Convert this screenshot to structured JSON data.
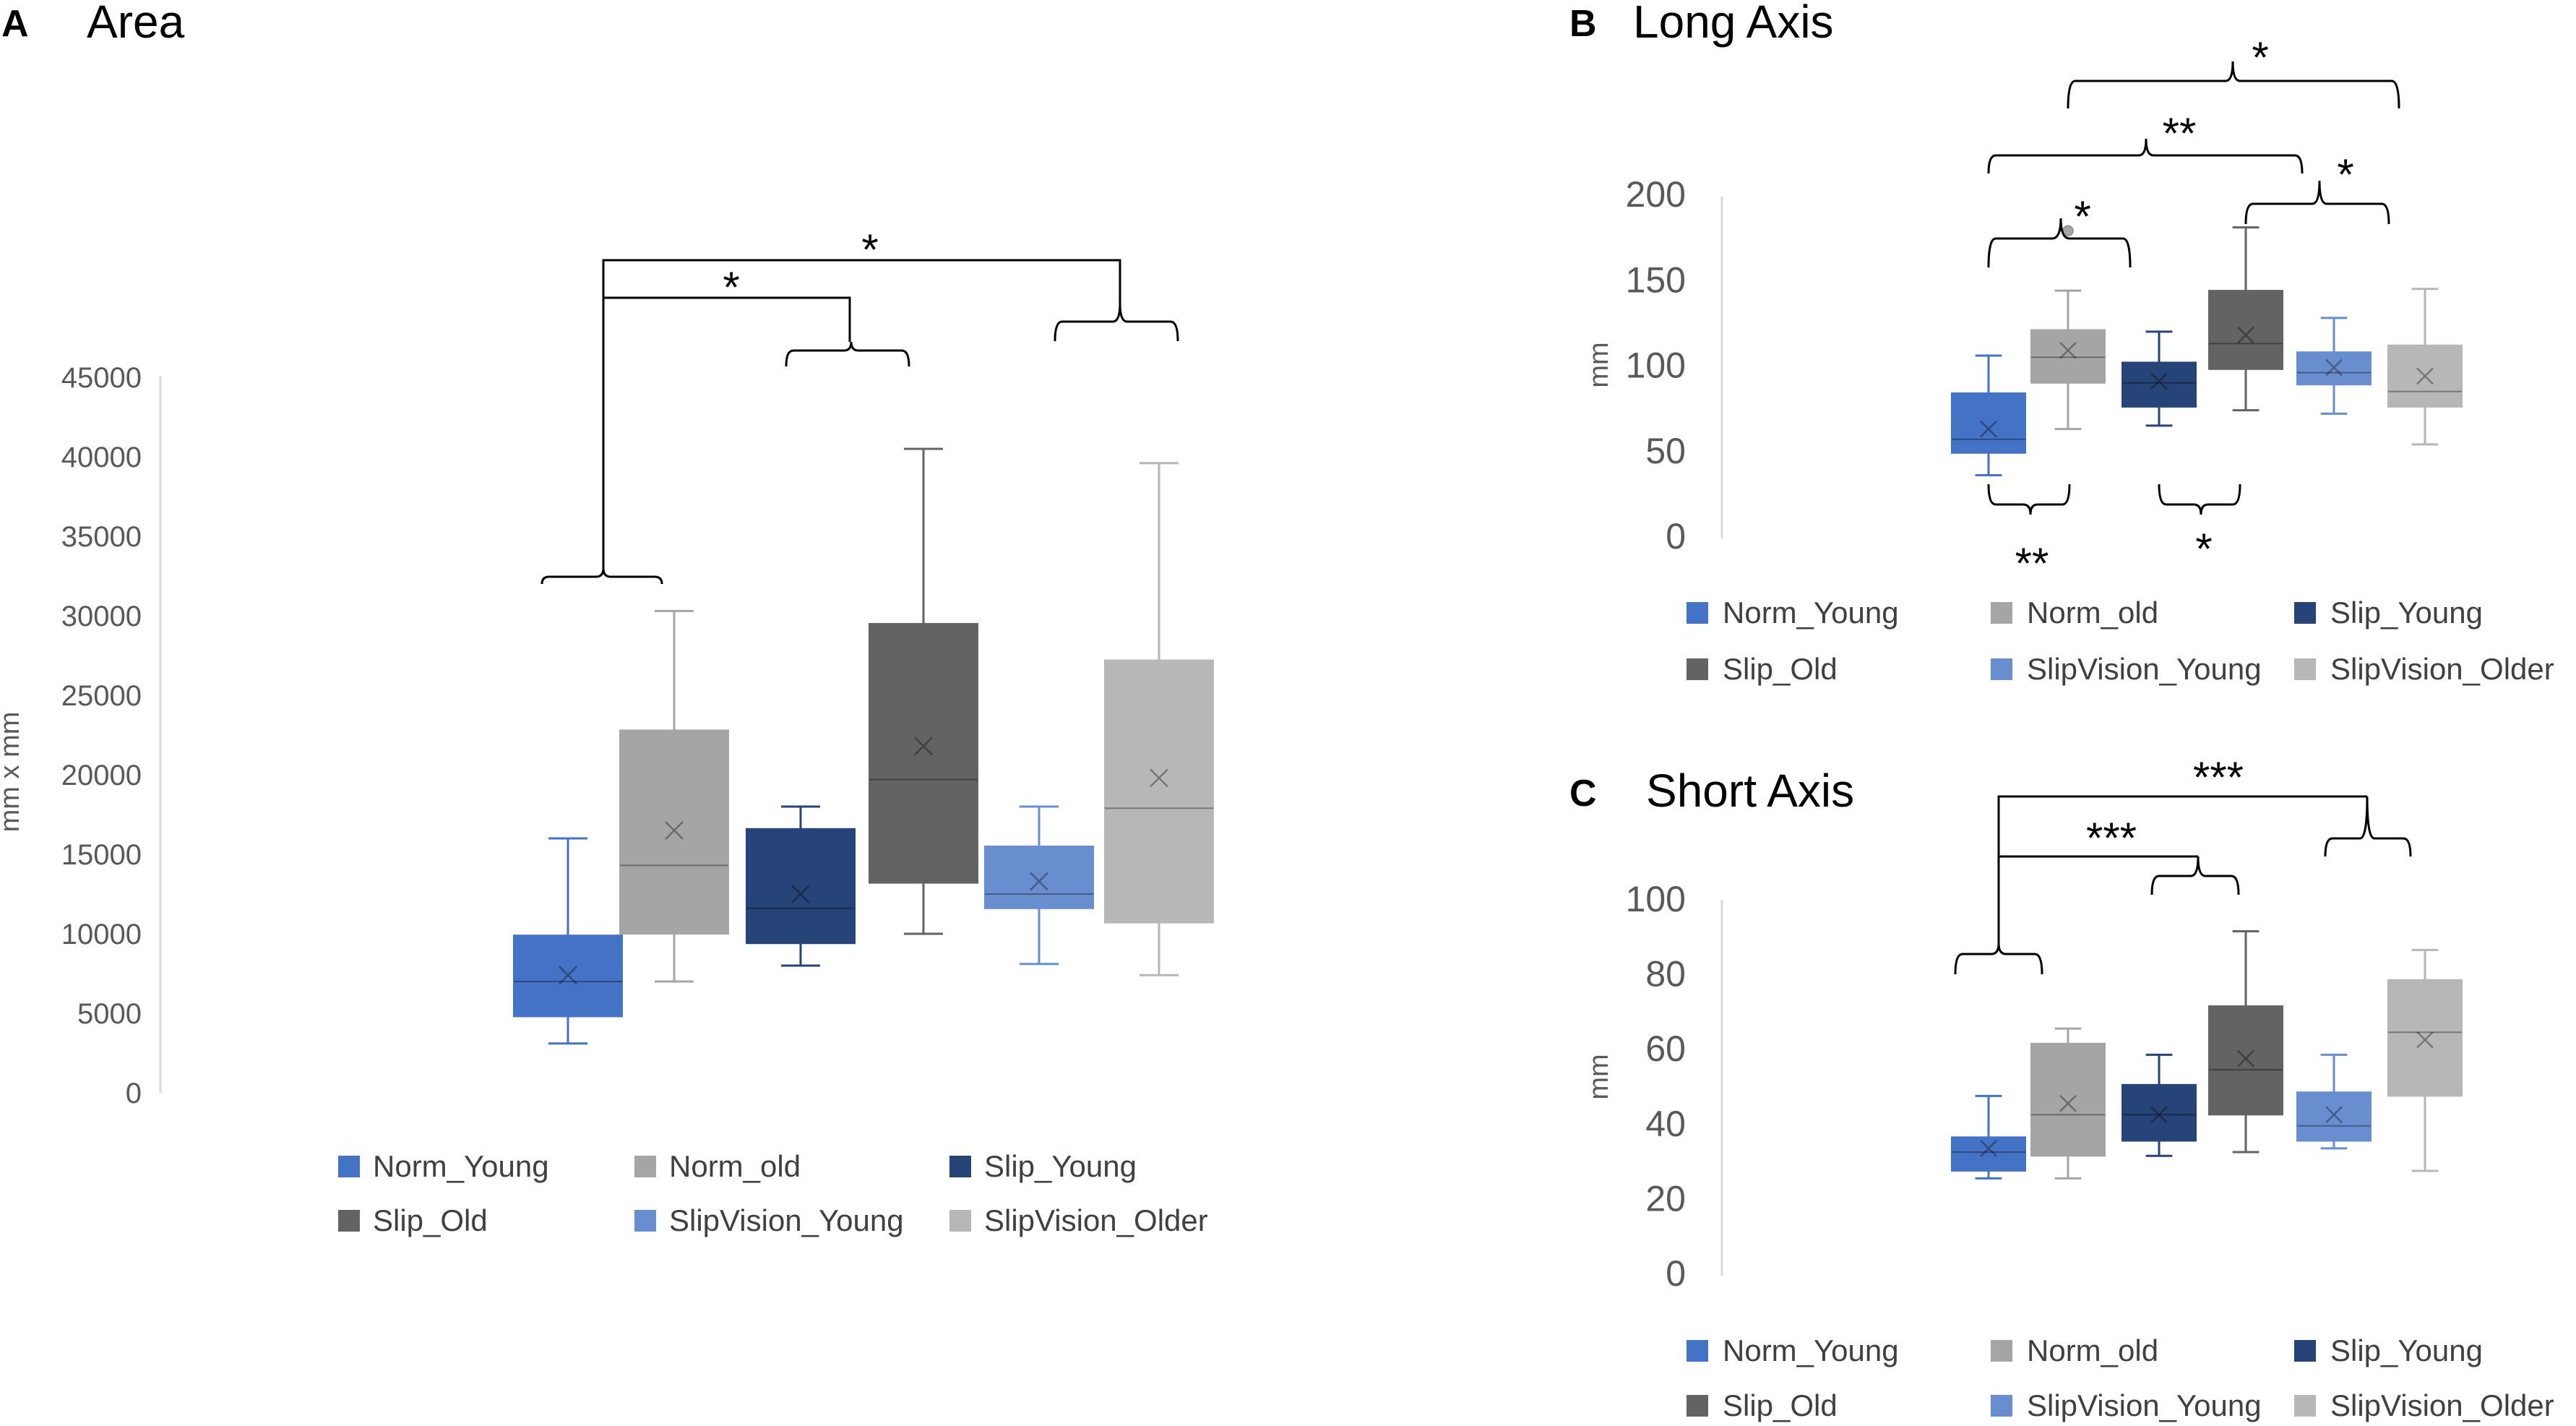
{
  "colors": {
    "Norm_Young": "#4472C4",
    "Norm_old": "#A5A5A5",
    "Slip_Young": "#264478",
    "Slip_Old": "#636363",
    "SlipVision_Young": "#698ED0",
    "SlipVision_Older": "#B7B7B7",
    "axis": "#D9D9D9",
    "bracket": "#000000"
  },
  "legend": [
    "Norm_Young",
    "Norm_old",
    "Slip_Young",
    "Slip_Old",
    "SlipVision_Young",
    "SlipVision_Older"
  ],
  "chart_data": [
    {
      "id": "A",
      "type": "box",
      "panel_label": "A",
      "title": "Area",
      "ylabel": "mm x mm",
      "xlabel": "",
      "ylim": [
        0,
        45000
      ],
      "yticks": [
        0,
        5000,
        10000,
        15000,
        20000,
        25000,
        30000,
        35000,
        40000,
        45000
      ],
      "grid": false,
      "legend_position": "bottom",
      "categories": [
        "Norm_Young",
        "Norm_old",
        "Slip_Young",
        "Slip_Old",
        "SlipVision_Young",
        "SlipVision_Older"
      ],
      "boxes": [
        {
          "name": "Norm_Young",
          "min": 3100,
          "q1": 4800,
          "median": 7000,
          "q3": 9900,
          "max": 16000,
          "mean": 7400,
          "outliers": []
        },
        {
          "name": "Norm_old",
          "min": 7000,
          "q1": 10000,
          "median": 14300,
          "q3": 22800,
          "max": 30300,
          "mean": 16500,
          "outliers": []
        },
        {
          "name": "Slip_Young",
          "min": 8000,
          "q1": 9400,
          "median": 11600,
          "q3": 16600,
          "max": 18000,
          "mean": 12500,
          "outliers": []
        },
        {
          "name": "Slip_Old",
          "min": 10000,
          "q1": 13200,
          "median": 19700,
          "q3": 29500,
          "max": 40500,
          "mean": 21800,
          "outliers": []
        },
        {
          "name": "SlipVision_Young",
          "min": 8100,
          "q1": 11600,
          "median": 12500,
          "q3": 15500,
          "max": 18000,
          "mean": 13300,
          "outliers": []
        },
        {
          "name": "SlipVision_Older",
          "min": 7400,
          "q1": 10700,
          "median": 17900,
          "q3": 27200,
          "max": 39600,
          "mean": 19800,
          "outliers": []
        }
      ],
      "significance": [
        {
          "label": "*",
          "from": "Norm_Young",
          "to": "Slip_Young"
        },
        {
          "label": "*",
          "from": "Norm_Young",
          "to": "SlipVision_Older"
        }
      ]
    },
    {
      "id": "B",
      "type": "box",
      "panel_label": "B",
      "title": "Long Axis",
      "ylabel": "mm",
      "xlabel": "",
      "ylim": [
        0,
        200
      ],
      "yticks": [
        0,
        50,
        100,
        150,
        200
      ],
      "grid": false,
      "legend_position": "bottom",
      "categories": [
        "Norm_Young",
        "Norm_old",
        "Slip_Young",
        "Slip_Old",
        "SlipVision_Young",
        "SlipVision_Older"
      ],
      "boxes": [
        {
          "name": "Norm_Young",
          "min": 37,
          "q1": 50,
          "median": 58,
          "q3": 85,
          "max": 107,
          "mean": 64,
          "outliers": []
        },
        {
          "name": "Norm_old",
          "min": 64,
          "q1": 91,
          "median": 106,
          "q3": 122,
          "max": 145,
          "mean": 110,
          "outliers": [
            180
          ]
        },
        {
          "name": "Slip_Young",
          "min": 66,
          "q1": 77,
          "median": 91,
          "q3": 103,
          "max": 121,
          "mean": 92,
          "outliers": []
        },
        {
          "name": "Slip_Old",
          "min": 75,
          "q1": 99,
          "median": 114,
          "q3": 145,
          "max": 182,
          "mean": 119,
          "outliers": []
        },
        {
          "name": "SlipVision_Young",
          "min": 73,
          "q1": 90,
          "median": 97,
          "q3": 109,
          "max": 129,
          "mean": 100,
          "outliers": []
        },
        {
          "name": "SlipVision_Older",
          "min": 55,
          "q1": 77,
          "median": 86,
          "q3": 113,
          "max": 146,
          "mean": 95,
          "outliers": []
        }
      ],
      "significance": [
        {
          "label": "*",
          "from": "Norm_Young",
          "to": "Norm_old",
          "side": "top"
        },
        {
          "label": "**",
          "from": "Norm_Young",
          "to": "SlipVision_Young",
          "side": "top"
        },
        {
          "label": "*",
          "from": "Slip_Old",
          "to": "SlipVision_Older",
          "side": "top"
        },
        {
          "label": "*",
          "from": "Norm_old",
          "to": "SlipVision_Older",
          "side": "top"
        },
        {
          "label": "**",
          "from": "Norm_Young",
          "to": "Norm_old",
          "side": "bottom"
        },
        {
          "label": "*",
          "from": "Slip_Young",
          "to": "Slip_Old",
          "side": "bottom"
        }
      ]
    },
    {
      "id": "C",
      "type": "box",
      "panel_label": "C",
      "title": "Short Axis",
      "ylabel": "mm",
      "xlabel": "",
      "ylim": [
        0,
        100
      ],
      "yticks": [
        0,
        20,
        40,
        60,
        80,
        100
      ],
      "grid": false,
      "legend_position": "bottom",
      "categories": [
        "Norm_Young",
        "Norm_old",
        "Slip_Young",
        "Slip_Old",
        "SlipVision_Young",
        "SlipVision_Older"
      ],
      "boxes": [
        {
          "name": "Norm_Young",
          "min": 26,
          "q1": 28,
          "median": 33,
          "q3": 37,
          "max": 48,
          "mean": 34,
          "outliers": []
        },
        {
          "name": "Norm_old",
          "min": 26,
          "q1": 32,
          "median": 43,
          "q3": 62,
          "max": 66,
          "mean": 46,
          "outliers": []
        },
        {
          "name": "Slip_Young",
          "min": 32,
          "q1": 36,
          "median": 43,
          "q3": 51,
          "max": 59,
          "mean": 43,
          "outliers": []
        },
        {
          "name": "Slip_Old",
          "min": 33,
          "q1": 43,
          "median": 55,
          "q3": 72,
          "max": 92,
          "mean": 58,
          "outliers": []
        },
        {
          "name": "SlipVision_Young",
          "min": 34,
          "q1": 36,
          "median": 40,
          "q3": 49,
          "max": 59,
          "mean": 43,
          "outliers": []
        },
        {
          "name": "SlipVision_Older",
          "min": 28,
          "q1": 48,
          "median": 65,
          "q3": 79,
          "max": 87,
          "mean": 63,
          "outliers": []
        }
      ],
      "significance": [
        {
          "label": "***",
          "from": "Norm_Young",
          "to": "Slip_Old"
        },
        {
          "label": "***",
          "from": "Norm_Young",
          "to": "SlipVision_Older"
        }
      ]
    }
  ]
}
